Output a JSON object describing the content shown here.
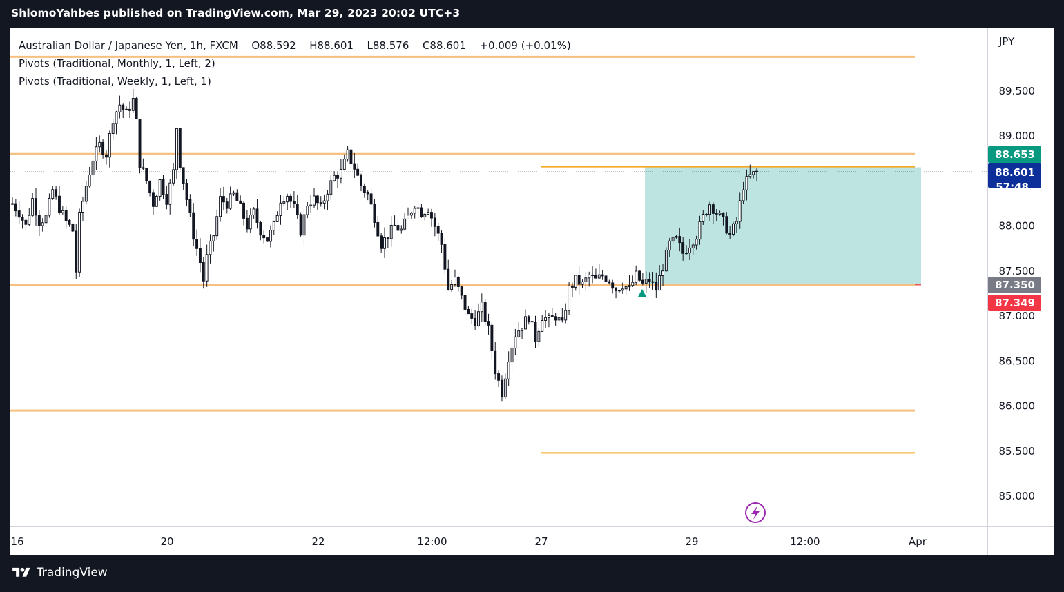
{
  "header": {
    "title": "ShlomoYahbes published on TradingView.com, Mar 29, 2023 20:02 UTC+3"
  },
  "legend": {
    "symbol": "Australian Dollar / Japanese Yen, 1h, FXCM",
    "open": "O88.592",
    "high": "H88.601",
    "low": "L88.576",
    "close": "C88.601",
    "change": "+0.009 (+0.01%)",
    "indicator1": "Pivots (Traditional, Monthly, 1, Left, 2)",
    "indicator2": "Pivots (Traditional, Weekly, 1, Left, 1)"
  },
  "axis": {
    "currency": "JPY"
  },
  "footer": {
    "brand": "TradingView",
    "logo_icon": "tradingview-logo-icon"
  },
  "colors": {
    "pivot": "#f7c080",
    "pivot_dark": "#f5a623",
    "zone_fill": "#b2dfdb",
    "stop_line": "#ef5350",
    "entry_line": "#9e9e9e",
    "badge_green": "#089981",
    "badge_blue": "#0d2f99",
    "badge_grey": "#787b86",
    "badge_red": "#f23645",
    "marker": "#089981",
    "lightning": "#9c27b0"
  },
  "chart_data": {
    "type": "candlestick",
    "title": "Australian Dollar / Japanese Yen, 1h, FXCM",
    "ylabel": "JPY",
    "ylim": [
      84.7,
      89.9
    ],
    "y_ticks": [
      "89.500",
      "89.000",
      "88.500",
      "88.000",
      "87.500",
      "87.000",
      "86.500",
      "86.000",
      "85.500",
      "85.000"
    ],
    "x_ticks": [
      "16",
      "20",
      "22",
      "12:00",
      "27",
      "29",
      "12:00",
      "Apr"
    ],
    "last_price": 88.601,
    "countdown": "57:48",
    "price_badges": [
      {
        "label": "88.653",
        "role": "target",
        "value": 88.653
      },
      {
        "label": "88.601",
        "role": "last",
        "value": 88.601
      },
      {
        "label": "87.350",
        "role": "entry",
        "value": 87.35
      },
      {
        "label": "87.349",
        "role": "stop",
        "value": 87.349
      }
    ],
    "pivot_levels": [
      {
        "value": 89.88,
        "span": "full"
      },
      {
        "value": 88.8,
        "span": "full"
      },
      {
        "value": 87.35,
        "span": "full"
      },
      {
        "value": 85.95,
        "span": "full"
      },
      {
        "value": 88.66,
        "span": "weekly"
      },
      {
        "value": 85.48,
        "span": "weekly"
      }
    ],
    "position": {
      "entry": 87.35,
      "target": 88.653,
      "stop": 87.349
    },
    "price_path": [
      [
        0,
        88.25
      ],
      [
        2,
        88.15
      ],
      [
        4,
        88.0
      ],
      [
        6,
        88.3
      ],
      [
        8,
        88.05
      ],
      [
        10,
        88.1
      ],
      [
        12,
        88.4
      ],
      [
        14,
        88.2
      ],
      [
        16,
        88.05
      ],
      [
        18,
        87.95
      ],
      [
        19,
        87.5
      ],
      [
        20,
        88.1
      ],
      [
        22,
        88.45
      ],
      [
        24,
        88.75
      ],
      [
        26,
        88.9
      ],
      [
        28,
        88.8
      ],
      [
        30,
        89.2
      ],
      [
        32,
        89.35
      ],
      [
        34,
        89.25
      ],
      [
        36,
        89.4
      ],
      [
        37,
        89.15
      ],
      [
        38,
        88.7
      ],
      [
        40,
        88.5
      ],
      [
        42,
        88.25
      ],
      [
        44,
        88.5
      ],
      [
        46,
        88.3
      ],
      [
        48,
        88.6
      ],
      [
        49,
        89.1
      ],
      [
        50,
        88.7
      ],
      [
        52,
        88.3
      ],
      [
        54,
        87.9
      ],
      [
        56,
        87.6
      ],
      [
        57,
        87.4
      ],
      [
        58,
        87.65
      ],
      [
        60,
        87.9
      ],
      [
        62,
        88.3
      ],
      [
        64,
        88.25
      ],
      [
        66,
        88.35
      ],
      [
        68,
        88.2
      ],
      [
        70,
        88.0
      ],
      [
        72,
        88.15
      ],
      [
        74,
        87.95
      ],
      [
        76,
        87.85
      ],
      [
        78,
        88.0
      ],
      [
        80,
        88.3
      ],
      [
        82,
        88.35
      ],
      [
        84,
        88.2
      ],
      [
        86,
        87.95
      ],
      [
        88,
        88.25
      ],
      [
        90,
        88.3
      ],
      [
        92,
        88.2
      ],
      [
        94,
        88.4
      ],
      [
        96,
        88.55
      ],
      [
        98,
        88.6
      ],
      [
        100,
        88.8
      ],
      [
        102,
        88.65
      ],
      [
        104,
        88.45
      ],
      [
        106,
        88.35
      ],
      [
        108,
        88.1
      ],
      [
        110,
        87.8
      ],
      [
        112,
        87.9
      ],
      [
        114,
        88.0
      ],
      [
        116,
        87.95
      ],
      [
        118,
        88.1
      ],
      [
        120,
        88.25
      ],
      [
        122,
        88.15
      ],
      [
        124,
        88.2
      ],
      [
        126,
        88.0
      ],
      [
        128,
        87.8
      ],
      [
        130,
        87.3
      ],
      [
        132,
        87.4
      ],
      [
        134,
        87.2
      ],
      [
        136,
        87.0
      ],
      [
        138,
        86.95
      ],
      [
        140,
        87.1
      ],
      [
        142,
        86.85
      ],
      [
        144,
        86.4
      ],
      [
        146,
        86.15
      ],
      [
        148,
        86.55
      ],
      [
        150,
        86.8
      ],
      [
        152,
        86.9
      ],
      [
        154,
        87.0
      ],
      [
        156,
        86.75
      ],
      [
        158,
        87.0
      ],
      [
        160,
        86.95
      ],
      [
        162,
        87.0
      ],
      [
        164,
        86.9
      ],
      [
        166,
        87.3
      ],
      [
        168,
        87.4
      ],
      [
        170,
        87.35
      ],
      [
        172,
        87.45
      ],
      [
        174,
        87.4
      ],
      [
        176,
        87.45
      ],
      [
        178,
        87.4
      ],
      [
        180,
        87.3
      ],
      [
        182,
        87.35
      ],
      [
        184,
        87.3
      ],
      [
        186,
        87.45
      ],
      [
        188,
        87.35
      ],
      [
        190,
        87.4
      ],
      [
        192,
        87.3
      ],
      [
        194,
        87.55
      ],
      [
        196,
        87.8
      ],
      [
        198,
        87.85
      ],
      [
        200,
        87.7
      ],
      [
        202,
        87.8
      ],
      [
        204,
        87.9
      ],
      [
        206,
        88.1
      ],
      [
        208,
        88.25
      ],
      [
        210,
        88.15
      ],
      [
        212,
        88.05
      ],
      [
        214,
        87.9
      ],
      [
        216,
        88.05
      ],
      [
        218,
        88.45
      ],
      [
        220,
        88.55
      ],
      [
        222,
        88.6
      ]
    ]
  }
}
